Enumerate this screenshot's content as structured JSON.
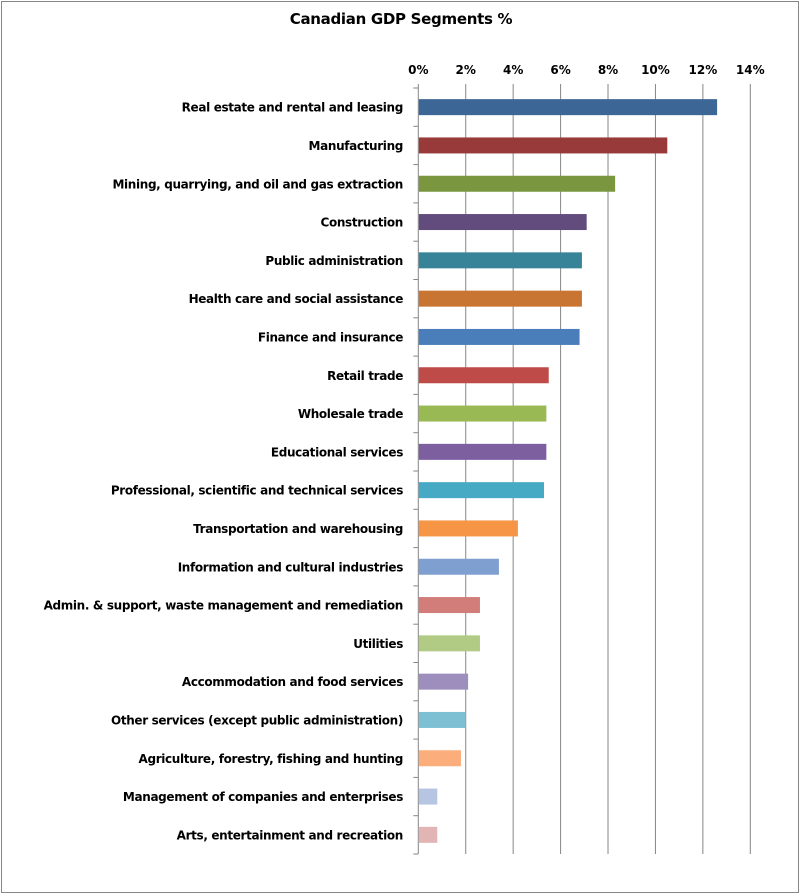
{
  "chart_data": {
    "type": "bar",
    "orientation": "horizontal",
    "title": "Canadian GDP Segments %",
    "xlabel": "",
    "ylabel": "",
    "xlim": [
      0,
      14
    ],
    "x_ticks": [
      0,
      2,
      4,
      6,
      8,
      10,
      12,
      14
    ],
    "x_tick_labels": [
      "0%",
      "2%",
      "4%",
      "6%",
      "8%",
      "10%",
      "12%",
      "14%"
    ],
    "x_axis_position": "top",
    "grid": true,
    "legend": "none",
    "categories": [
      "Real estate and rental and leasing",
      "Manufacturing",
      "Mining, quarrying, and oil and gas extraction",
      "Construction",
      "Public administration",
      "Health care and social assistance",
      "Finance and insurance",
      "Retail trade",
      "Wholesale trade",
      "Educational services",
      "Professional, scientific and technical services",
      "Transportation and warehousing",
      "Information and cultural industries",
      "Admin. & support, waste management and remediation",
      "Utilities",
      "Accommodation and food services",
      "Other services (except public administration)",
      "Agriculture, forestry, fishing and hunting",
      "Management of companies and enterprises",
      "Arts, entertainment and recreation"
    ],
    "values": [
      12.6,
      10.5,
      8.3,
      7.1,
      6.9,
      6.9,
      6.8,
      5.5,
      5.4,
      5.4,
      5.3,
      4.2,
      3.4,
      2.6,
      2.6,
      2.1,
      2.0,
      1.8,
      0.8,
      0.8
    ],
    "colors": [
      "#3c6695",
      "#983a3a",
      "#7a963f",
      "#624b7d",
      "#378498",
      "#c87432",
      "#4a7ebb",
      "#be4b48",
      "#98b954",
      "#7d5fa0",
      "#46aac5",
      "#f69545",
      "#7e9fd0",
      "#d37d7b",
      "#b1cb85",
      "#9d8ebd",
      "#7ec0d3",
      "#fbae7c",
      "#b5c5e2",
      "#e1b5b4"
    ]
  }
}
